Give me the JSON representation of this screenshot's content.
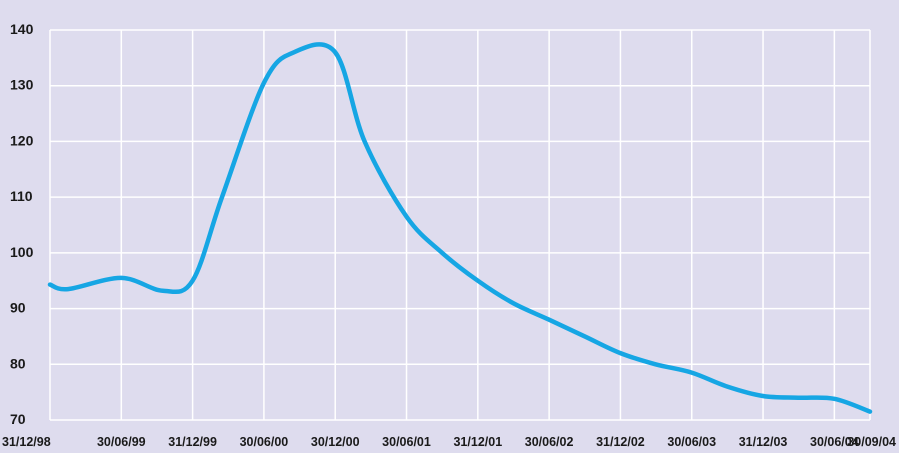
{
  "chart_data": {
    "type": "line",
    "title": "",
    "xlabel": "",
    "ylabel": "",
    "ylim": [
      70,
      140
    ],
    "y_ticks": [
      70,
      80,
      90,
      100,
      110,
      120,
      130,
      140
    ],
    "x_tick_labels": [
      "31/12/98",
      "30/06/99",
      "31/12/99",
      "30/06/00",
      "30/12/00",
      "30/06/01",
      "31/12/01",
      "30/06/02",
      "31/12/02",
      "30/06/03",
      "31/12/03",
      "30/06/04",
      "30/09/04"
    ],
    "grid": true,
    "series": [
      {
        "color": "#16a6e4",
        "x": [
          "31/12/98",
          "15/02/99",
          "30/06/99",
          "15/10/99",
          "31/12/99",
          "15/03/00",
          "30/06/00",
          "15/09/00",
          "30/12/00",
          "15/03/01",
          "30/06/01",
          "30/09/01",
          "31/12/01",
          "30/03/02",
          "30/06/02",
          "30/09/02",
          "31/12/02",
          "30/03/03",
          "30/06/03",
          "30/09/03",
          "31/12/03",
          "30/03/04",
          "30/06/04",
          "30/09/04"
        ],
        "values": [
          94.3,
          93.5,
          95.5,
          93.2,
          95,
          110,
          130.5,
          136,
          136,
          120,
          106.5,
          100,
          95,
          91,
          88,
          85,
          82,
          80,
          78.5,
          76,
          74.3,
          74,
          73.8,
          71.5
        ]
      }
    ]
  },
  "colors": {
    "background": "#dedcee",
    "grid": "#ffffff",
    "line": "#16a6e4",
    "text": "#1a1a1a"
  }
}
